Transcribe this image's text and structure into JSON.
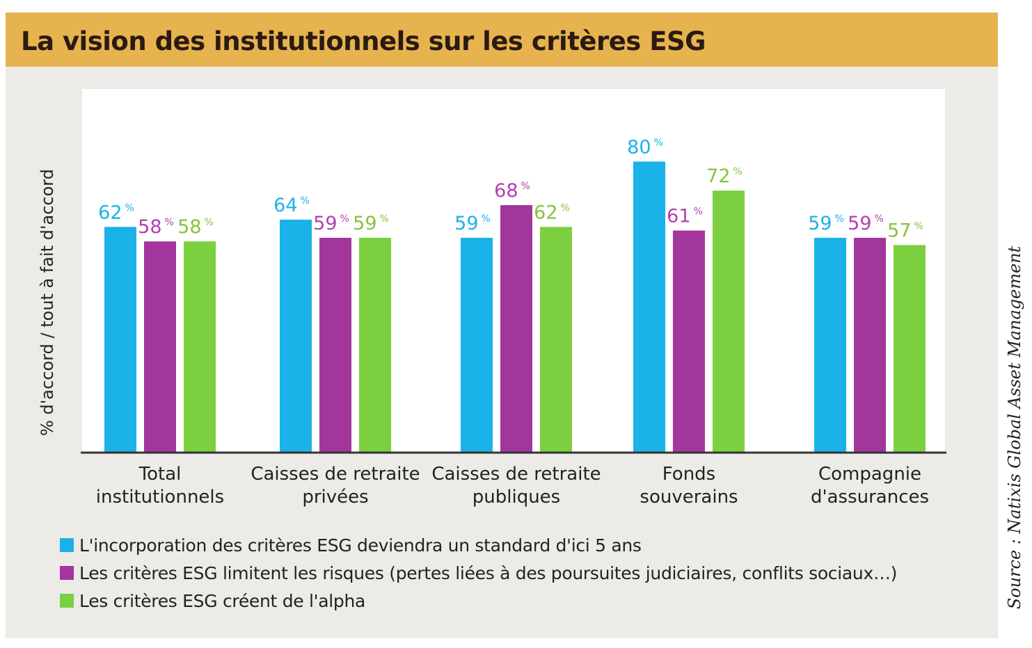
{
  "title": "La vision des institutionnels sur les critères ESG",
  "source": "Source : Natixis Global Asset Management",
  "chart_data": {
    "type": "bar",
    "ylabel": "% d'accord / tout à fait d'accord",
    "xlabel": "",
    "value_suffix": "%",
    "ylim": [
      0,
      100
    ],
    "grid": false,
    "legend_position": "bottom",
    "categories": [
      [
        "Total",
        "institutionnels"
      ],
      [
        "Caisses de retraite",
        "privées"
      ],
      [
        "Caisses de retraite",
        "publiques"
      ],
      [
        "Fonds",
        "souverains"
      ],
      [
        "Compagnie",
        "d'assurances"
      ]
    ],
    "series": [
      {
        "name": "L'incorporation des critères ESG deviendra un standard d'ici 5 ans",
        "color": "#1ab2e8",
        "label_color": "#1ab2e8",
        "values": [
          62,
          64,
          59,
          80,
          59
        ]
      },
      {
        "name": "Les critères ESG limitent les risques (pertes liées à des poursuites judiciaires, conflits sociaux…)",
        "color": "#a3369c",
        "label_color": "#b340ad",
        "values": [
          58,
          59,
          68,
          61,
          59
        ]
      },
      {
        "name": "Les critères ESG créent de l'alpha",
        "color": "#7ccf3e",
        "label_color": "#84c43c",
        "values": [
          58,
          59,
          62,
          72,
          57
        ]
      }
    ]
  }
}
